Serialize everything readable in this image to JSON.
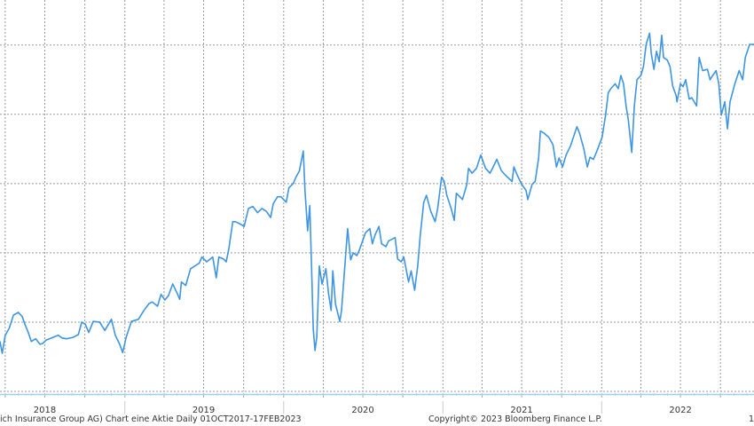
{
  "chart_data": {
    "type": "line",
    "title": "",
    "xlabel": "",
    "ylabel": "",
    "xlim": [
      "2018-03-20",
      "2022-12-17"
    ],
    "ylim": [
      0,
      5.65
    ],
    "y_gridlines": [
      0,
      1,
      2,
      3,
      4,
      5
    ],
    "y_tick_labels_shown": false,
    "grid": true,
    "x_tick_labels": [
      "2018",
      "2019",
      "2020",
      "2021",
      "2022"
    ],
    "line_color": "#3d95e3",
    "grid_color": "#9a9a9a",
    "axis_color": "#9fd0ea",
    "series": [
      {
        "points": [
          [
            "2018-03-20",
            0.72
          ],
          [
            "2018-03-25",
            0.55
          ],
          [
            "2018-04-01",
            0.81
          ],
          [
            "2018-04-10",
            0.91
          ],
          [
            "2018-04-20",
            1.1
          ],
          [
            "2018-05-01",
            1.14
          ],
          [
            "2018-05-10",
            1.08
          ],
          [
            "2018-05-16",
            0.97
          ],
          [
            "2018-05-24",
            0.85
          ],
          [
            "2018-05-31",
            0.72
          ],
          [
            "2018-06-10",
            0.76
          ],
          [
            "2018-06-20",
            0.68
          ],
          [
            "2018-06-26",
            0.69
          ],
          [
            "2018-07-04",
            0.74
          ],
          [
            "2018-07-16",
            0.77
          ],
          [
            "2018-08-01",
            0.81
          ],
          [
            "2018-08-10",
            0.77
          ],
          [
            "2018-08-20",
            0.76
          ],
          [
            "2018-09-04",
            0.78
          ],
          [
            "2018-09-16",
            0.82
          ],
          [
            "2018-09-24",
            1.0
          ],
          [
            "2018-10-02",
            0.97
          ],
          [
            "2018-10-10",
            0.85
          ],
          [
            "2018-10-20",
            1.01
          ],
          [
            "2018-11-04",
            1.0
          ],
          [
            "2018-11-16",
            0.88
          ],
          [
            "2018-12-01",
            1.04
          ],
          [
            "2018-12-10",
            0.81
          ],
          [
            "2018-12-20",
            0.68
          ],
          [
            "2018-12-27",
            0.56
          ],
          [
            "2019-01-04",
            0.78
          ],
          [
            "2019-01-16",
            1.01
          ],
          [
            "2019-02-01",
            1.04
          ],
          [
            "2019-02-14",
            1.17
          ],
          [
            "2019-02-26",
            1.27
          ],
          [
            "2019-03-05",
            1.29
          ],
          [
            "2019-03-17",
            1.23
          ],
          [
            "2019-03-25",
            1.4
          ],
          [
            "2019-04-03",
            1.32
          ],
          [
            "2019-04-11",
            1.38
          ],
          [
            "2019-04-21",
            1.55
          ],
          [
            "2019-05-01",
            1.42
          ],
          [
            "2019-05-07",
            1.33
          ],
          [
            "2019-05-11",
            1.58
          ],
          [
            "2019-05-21",
            1.53
          ],
          [
            "2019-06-01",
            1.77
          ],
          [
            "2019-06-11",
            1.81
          ],
          [
            "2019-06-21",
            1.85
          ],
          [
            "2019-06-27",
            1.94
          ],
          [
            "2019-07-08",
            1.87
          ],
          [
            "2019-07-22",
            1.94
          ],
          [
            "2019-07-30",
            1.64
          ],
          [
            "2019-08-05",
            1.94
          ],
          [
            "2019-08-16",
            1.91
          ],
          [
            "2019-08-22",
            1.87
          ],
          [
            "2019-08-28",
            2.06
          ],
          [
            "2019-09-06",
            2.45
          ],
          [
            "2019-09-12",
            2.45
          ],
          [
            "2019-09-22",
            2.42
          ],
          [
            "2019-10-02",
            2.38
          ],
          [
            "2019-10-12",
            2.64
          ],
          [
            "2019-10-22",
            2.67
          ],
          [
            "2019-11-02",
            2.58
          ],
          [
            "2019-11-12",
            2.64
          ],
          [
            "2019-11-22",
            2.6
          ],
          [
            "2019-12-02",
            2.51
          ],
          [
            "2019-12-08",
            2.71
          ],
          [
            "2019-12-18",
            2.81
          ],
          [
            "2019-12-26",
            2.81
          ],
          [
            "2020-01-07",
            2.73
          ],
          [
            "2020-01-13",
            2.94
          ],
          [
            "2020-01-23",
            3.0
          ],
          [
            "2020-01-29",
            3.09
          ],
          [
            "2020-02-06",
            3.18
          ],
          [
            "2020-02-15",
            3.47
          ],
          [
            "2020-02-19",
            2.9
          ],
          [
            "2020-02-25",
            2.32
          ],
          [
            "2020-03-01",
            2.68
          ],
          [
            "2020-03-05",
            1.81
          ],
          [
            "2020-03-09",
            0.91
          ],
          [
            "2020-03-13",
            0.59
          ],
          [
            "2020-03-17",
            0.78
          ],
          [
            "2020-03-23",
            1.81
          ],
          [
            "2020-03-29",
            1.55
          ],
          [
            "2020-04-07",
            1.77
          ],
          [
            "2020-04-13",
            1.42
          ],
          [
            "2020-04-19",
            1.17
          ],
          [
            "2020-04-23",
            1.74
          ],
          [
            "2020-04-29",
            1.26
          ],
          [
            "2020-05-09",
            1.01
          ],
          [
            "2020-05-13",
            1.17
          ],
          [
            "2020-05-19",
            1.68
          ],
          [
            "2020-05-27",
            2.35
          ],
          [
            "2020-06-03",
            1.9
          ],
          [
            "2020-06-09",
            2.0
          ],
          [
            "2020-06-17",
            1.96
          ],
          [
            "2020-06-23",
            2.04
          ],
          [
            "2020-06-29",
            2.15
          ],
          [
            "2020-07-07",
            2.29
          ],
          [
            "2020-07-17",
            2.35
          ],
          [
            "2020-07-23",
            2.13
          ],
          [
            "2020-07-29",
            2.26
          ],
          [
            "2020-08-07",
            2.38
          ],
          [
            "2020-08-13",
            2.13
          ],
          [
            "2020-08-23",
            2.09
          ],
          [
            "2020-08-29",
            2.17
          ],
          [
            "2020-09-13",
            2.22
          ],
          [
            "2020-09-19",
            1.91
          ],
          [
            "2020-09-27",
            1.87
          ],
          [
            "2020-10-03",
            1.94
          ],
          [
            "2020-10-14",
            1.58
          ],
          [
            "2020-10-20",
            1.74
          ],
          [
            "2020-10-28",
            1.46
          ],
          [
            "2020-11-04",
            1.81
          ],
          [
            "2020-11-10",
            2.26
          ],
          [
            "2020-11-18",
            2.73
          ],
          [
            "2020-11-24",
            2.83
          ],
          [
            "2020-12-04",
            2.6
          ],
          [
            "2020-12-14",
            2.45
          ],
          [
            "2020-12-20",
            2.64
          ],
          [
            "2020-12-29",
            3.09
          ],
          [
            "2021-01-04",
            3.03
          ],
          [
            "2021-01-10",
            2.83
          ],
          [
            "2021-01-20",
            2.64
          ],
          [
            "2021-01-27",
            2.47
          ],
          [
            "2021-02-01",
            2.86
          ],
          [
            "2021-02-09",
            2.81
          ],
          [
            "2021-02-15",
            2.77
          ],
          [
            "2021-02-25",
            2.99
          ],
          [
            "2021-03-01",
            3.22
          ],
          [
            "2021-03-09",
            3.15
          ],
          [
            "2021-03-19",
            3.22
          ],
          [
            "2021-03-29",
            3.41
          ],
          [
            "2021-04-09",
            3.22
          ],
          [
            "2021-04-19",
            3.15
          ],
          [
            "2021-04-25",
            3.22
          ],
          [
            "2021-05-05",
            3.35
          ],
          [
            "2021-05-15",
            3.19
          ],
          [
            "2021-05-25",
            3.12
          ],
          [
            "2021-06-09",
            3.03
          ],
          [
            "2021-06-13",
            3.24
          ],
          [
            "2021-06-21",
            3.12
          ],
          [
            "2021-07-01",
            2.99
          ],
          [
            "2021-07-11",
            2.9
          ],
          [
            "2021-07-15",
            2.77
          ],
          [
            "2021-07-25",
            2.99
          ],
          [
            "2021-08-01",
            3.03
          ],
          [
            "2021-08-09",
            3.37
          ],
          [
            "2021-08-13",
            3.76
          ],
          [
            "2021-08-21",
            3.73
          ],
          [
            "2021-09-01",
            3.67
          ],
          [
            "2021-09-11",
            3.56
          ],
          [
            "2021-09-19",
            3.24
          ],
          [
            "2021-09-25",
            3.37
          ],
          [
            "2021-10-03",
            3.24
          ],
          [
            "2021-10-11",
            3.41
          ],
          [
            "2021-10-21",
            3.54
          ],
          [
            "2021-11-05",
            3.82
          ],
          [
            "2021-11-11",
            3.73
          ],
          [
            "2021-11-21",
            3.5
          ],
          [
            "2021-11-29",
            3.24
          ],
          [
            "2021-12-05",
            3.38
          ],
          [
            "2021-12-13",
            3.35
          ],
          [
            "2021-12-21",
            3.47
          ],
          [
            "2022-01-02",
            3.67
          ],
          [
            "2022-01-10",
            3.99
          ],
          [
            "2022-01-16",
            4.31
          ],
          [
            "2022-01-22",
            4.37
          ],
          [
            "2022-02-01",
            4.44
          ],
          [
            "2022-02-08",
            4.37
          ],
          [
            "2022-02-14",
            4.56
          ],
          [
            "2022-02-20",
            4.44
          ],
          [
            "2022-02-26",
            4.12
          ],
          [
            "2022-03-03",
            3.92
          ],
          [
            "2022-03-11",
            3.45
          ],
          [
            "2022-03-17",
            4.12
          ],
          [
            "2022-03-23",
            4.5
          ],
          [
            "2022-04-01",
            4.56
          ],
          [
            "2022-04-07",
            4.69
          ],
          [
            "2022-04-13",
            5.01
          ],
          [
            "2022-04-21",
            5.17
          ],
          [
            "2022-04-25",
            4.88
          ],
          [
            "2022-05-01",
            4.65
          ],
          [
            "2022-05-07",
            4.91
          ],
          [
            "2022-05-13",
            4.76
          ],
          [
            "2022-05-19",
            5.14
          ],
          [
            "2022-05-23",
            4.82
          ],
          [
            "2022-06-01",
            4.78
          ],
          [
            "2022-06-07",
            4.69
          ],
          [
            "2022-06-13",
            4.41
          ],
          [
            "2022-06-21",
            4.27
          ],
          [
            "2022-06-23",
            4.18
          ],
          [
            "2022-07-01",
            4.44
          ],
          [
            "2022-07-07",
            4.4
          ],
          [
            "2022-07-13",
            4.5
          ],
          [
            "2022-07-21",
            4.22
          ],
          [
            "2022-07-27",
            4.24
          ],
          [
            "2022-08-07",
            4.12
          ],
          [
            "2022-08-13",
            4.82
          ],
          [
            "2022-08-21",
            4.63
          ],
          [
            "2022-09-01",
            4.65
          ],
          [
            "2022-09-07",
            4.5
          ],
          [
            "2022-09-13",
            4.56
          ],
          [
            "2022-09-21",
            4.63
          ],
          [
            "2022-09-27",
            4.44
          ],
          [
            "2022-10-03",
            3.99
          ],
          [
            "2022-10-11",
            4.18
          ],
          [
            "2022-10-17",
            3.79
          ],
          [
            "2022-10-23",
            4.18
          ],
          [
            "2022-11-03",
            4.44
          ],
          [
            "2022-11-13",
            4.63
          ],
          [
            "2022-11-21",
            4.5
          ],
          [
            "2022-11-27",
            4.82
          ],
          [
            "2022-12-07",
            5.01
          ],
          [
            "2022-12-17",
            5.01
          ]
        ]
      }
    ]
  },
  "footer": {
    "description": "ich Insurance Group AG) Chart eine Aktie  Daily 01OCT2017-17FEB2023",
    "copyright": "Copyright© 2023 Bloomberg Finance L.P.",
    "page_fragment": "1"
  }
}
